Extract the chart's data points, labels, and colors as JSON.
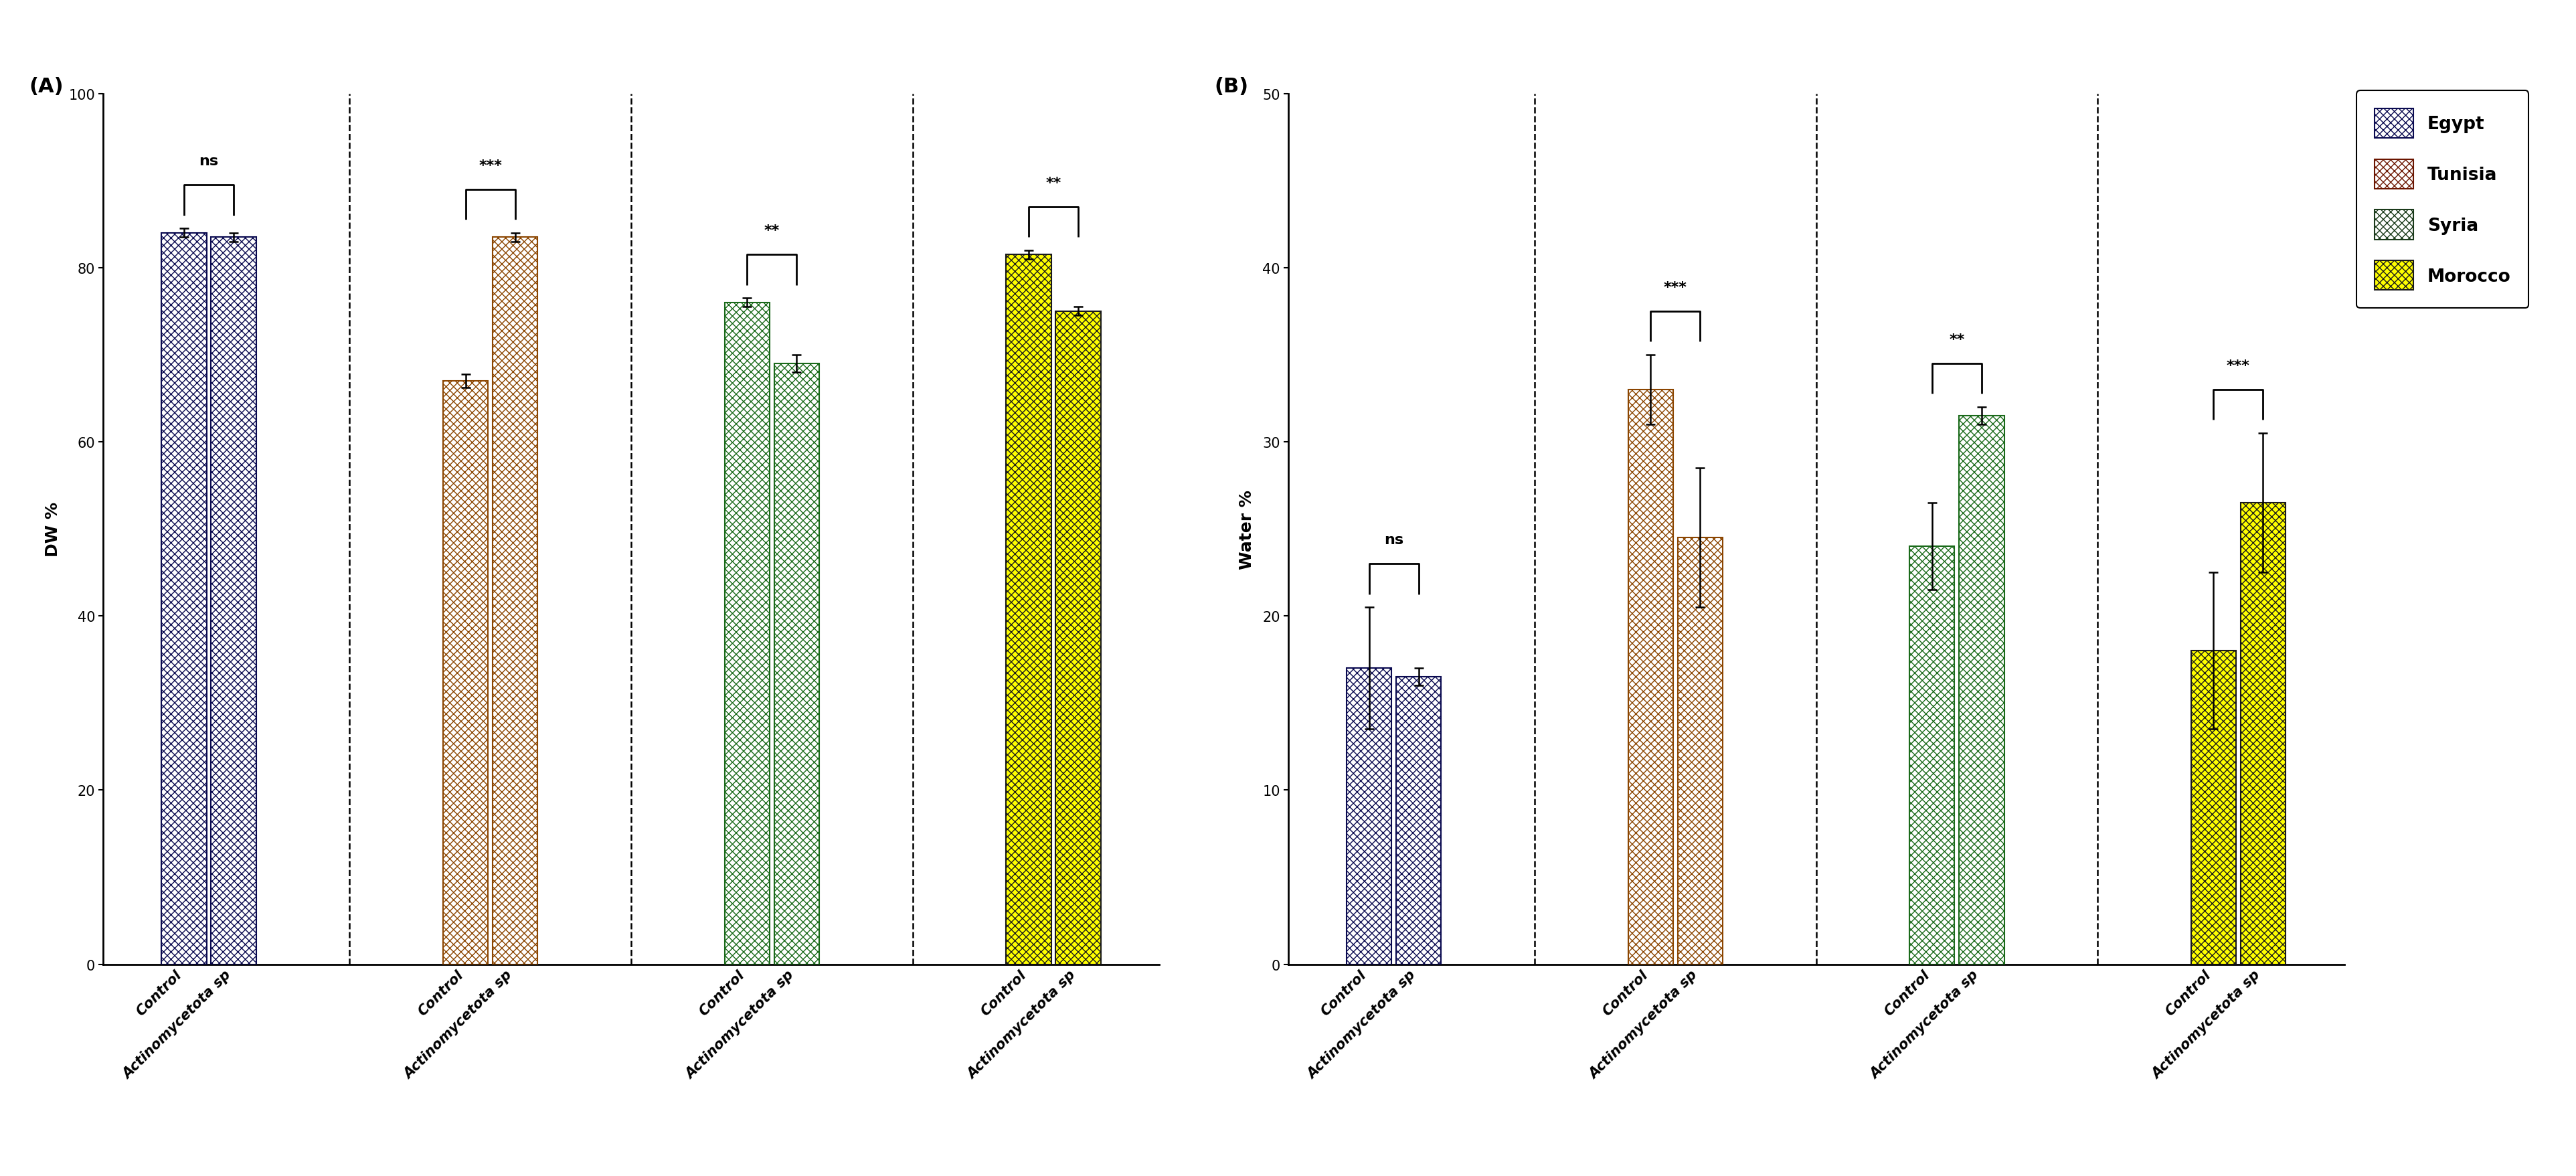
{
  "panel_A": {
    "title": "(A)",
    "ylabel": "DW %",
    "ylim": [
      0,
      100
    ],
    "yticks": [
      0,
      20,
      40,
      60,
      80,
      100
    ],
    "groups": [
      "Egypt",
      "Tunisia",
      "Syria",
      "Morocco"
    ],
    "bar_face_colors": [
      "white",
      "white",
      "white",
      "yellow"
    ],
    "bar_hatch_colors": [
      "#0a0a50",
      "#6B1500",
      "#1a3a1a",
      "#1a1a1a"
    ],
    "bar_edge_colors": [
      "#0a0a50",
      "#8B4500",
      "#1a6a1a",
      "#1a1a1a"
    ],
    "control_values": [
      84.0,
      67.0,
      76.0,
      81.5
    ],
    "actino_values": [
      83.5,
      83.5,
      69.0,
      75.0
    ],
    "control_errors": [
      0.5,
      0.8,
      0.5,
      0.5
    ],
    "actino_errors": [
      0.5,
      0.5,
      1.0,
      0.5
    ],
    "significance": [
      "ns",
      "***",
      "**",
      "**"
    ]
  },
  "panel_B": {
    "title": "(B)",
    "ylabel": "Water %",
    "ylim": [
      0,
      50
    ],
    "yticks": [
      0,
      10,
      20,
      30,
      40,
      50
    ],
    "groups": [
      "Egypt",
      "Tunisia",
      "Syria",
      "Morocco"
    ],
    "bar_face_colors": [
      "white",
      "white",
      "white",
      "yellow"
    ],
    "bar_hatch_colors": [
      "#0a0a50",
      "#6B1500",
      "#1a3a1a",
      "#1a1a1a"
    ],
    "bar_edge_colors": [
      "#0a0a50",
      "#8B4500",
      "#1a6a1a",
      "#1a1a1a"
    ],
    "control_values": [
      17.0,
      33.0,
      24.0,
      18.0
    ],
    "actino_values": [
      16.5,
      24.5,
      31.5,
      26.5
    ],
    "control_errors": [
      3.5,
      2.0,
      2.5,
      4.5
    ],
    "actino_errors": [
      0.5,
      4.0,
      0.5,
      4.0
    ],
    "significance": [
      "ns",
      "***",
      "**",
      "***"
    ]
  },
  "legend_labels": [
    "Egypt",
    "Tunisia",
    "Syria",
    "Morocco"
  ],
  "legend_face_colors": [
    "white",
    "white",
    "white",
    "yellow"
  ],
  "legend_hatch_colors": [
    "#0a0a50",
    "#6B1500",
    "#1a3a1a",
    "#1a1a1a"
  ],
  "legend_edge_colors": [
    "#0a0a50",
    "#8B4500",
    "#1a6a1a",
    "#1a1a1a"
  ],
  "background_color": "#ffffff",
  "bar_width": 0.32,
  "font_size": 14,
  "label_font_size": 16,
  "title_font_size": 20,
  "tick_font_size": 14
}
